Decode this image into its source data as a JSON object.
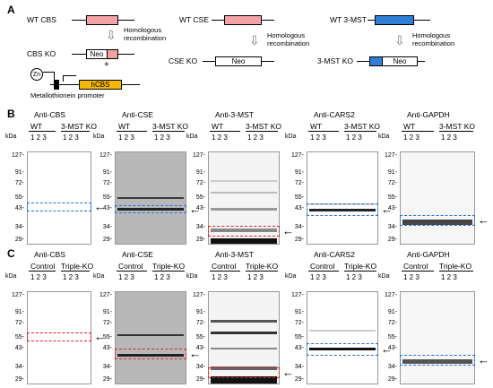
{
  "panels": {
    "a": "A",
    "b": "B",
    "c": "C"
  },
  "panelA": {
    "wt_cbs": "WT CBS",
    "wt_cse": "WT CSE",
    "wt_3mst": "WT 3-MST",
    "homologous": "Homologous",
    "recombination": "recombination",
    "cbs_ko": "CBS KO",
    "cse_ko": "CSE KO",
    "mst_ko": "3-MST KO",
    "neo": "Neo",
    "plus": "+",
    "zn": "Zn",
    "hcbs": "hCBS",
    "promoter": "Metallothionein promoter",
    "colors": {
      "cbs": "#f3a3a6",
      "mst": "#2f7fd6",
      "hcbs": "#f5b800"
    }
  },
  "panelB": {
    "kda": "kDa",
    "lanes": "1 2 3",
    "group1": "WT",
    "group2": "3-MST KO",
    "blots": [
      {
        "title": "Anti-CBS",
        "markers": [
          "127-",
          "91-",
          "72-",
          "55-",
          "43-",
          "34-",
          "29-"
        ]
      },
      {
        "title": "Anti-CSE",
        "markers": [
          "127-",
          "91-",
          "72-",
          "55-",
          "43-",
          "34-",
          "29-"
        ]
      },
      {
        "title": "Anti-3-MST",
        "markers": [
          "127-",
          "91-",
          "72-",
          "55-",
          "43-",
          "34-",
          "29-"
        ]
      },
      {
        "title": "Anti-CARS2",
        "markers": [
          "127-",
          "91-",
          "72-",
          "55-",
          "43-",
          "34-",
          "29-"
        ]
      },
      {
        "title": "Anti-GAPDH",
        "markers": [
          "127-",
          "91-",
          "72-",
          "55-",
          "43-",
          "34-",
          "29-"
        ]
      }
    ]
  },
  "panelC": {
    "kda": "kDa",
    "lanes": "1 2 3",
    "group1": "Control",
    "group2": "Triple-KO",
    "blots": [
      {
        "title": "Anti-CBS",
        "markers": [
          "127-",
          "91-",
          "72-",
          "55-",
          "43-",
          "34-",
          "29-"
        ]
      },
      {
        "title": "Anti-CSE",
        "markers": [
          "127-",
          "91-",
          "72-",
          "55-",
          "43-",
          "34-",
          "29-"
        ]
      },
      {
        "title": "Anti-3-MST",
        "markers": [
          "127-",
          "91-",
          "72-",
          "55-",
          "43-",
          "34-",
          "29-"
        ]
      },
      {
        "title": "Anti-CARS2",
        "markers": [
          "127-",
          "91-",
          "72-",
          "55-",
          "43-",
          "34-",
          "29-"
        ]
      },
      {
        "title": "Anti-GAPDH",
        "markers": [
          "127-",
          "91-",
          "72-",
          "55-",
          "43-",
          "34-",
          "29-"
        ]
      }
    ]
  }
}
